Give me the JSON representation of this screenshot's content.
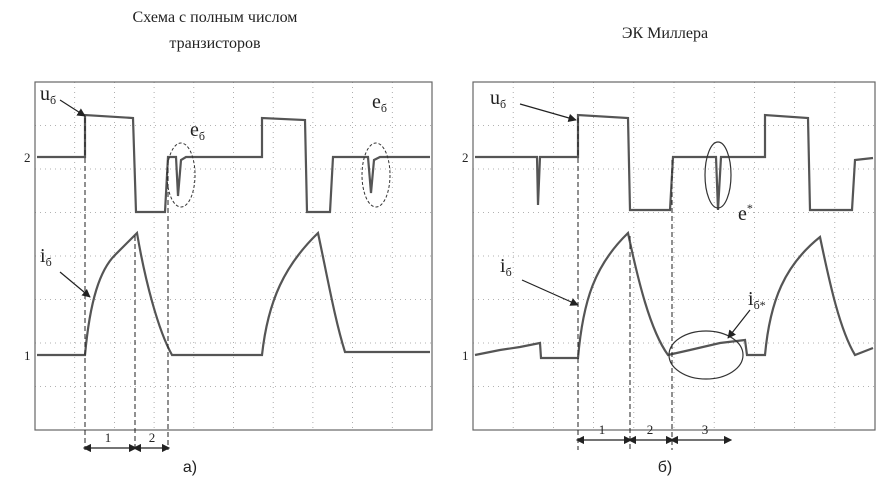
{
  "panels": [
    {
      "title_line1": "Схема с полным числом",
      "title_line2": "транзисторов",
      "channels": [
        "2",
        "1"
      ],
      "labels": [
        {
          "text": "u",
          "sub": "б"
        },
        {
          "text": "e",
          "sub": "б"
        },
        {
          "text": "e",
          "sub": "б"
        },
        {
          "text": "i",
          "sub": "б"
        }
      ],
      "intervals": [
        "1",
        "2"
      ],
      "caption": "а)"
    },
    {
      "title_line1": "ЭК Миллера",
      "channels": [
        "2",
        "1"
      ],
      "labels": [
        {
          "text": "u",
          "sub": "б"
        },
        {
          "text": "e",
          "sub": "*"
        },
        {
          "text": "i",
          "sub": "б"
        },
        {
          "text": "i",
          "sub": "б*"
        }
      ],
      "intervals": [
        "1",
        "2",
        "3"
      ],
      "caption": "б)"
    }
  ]
}
